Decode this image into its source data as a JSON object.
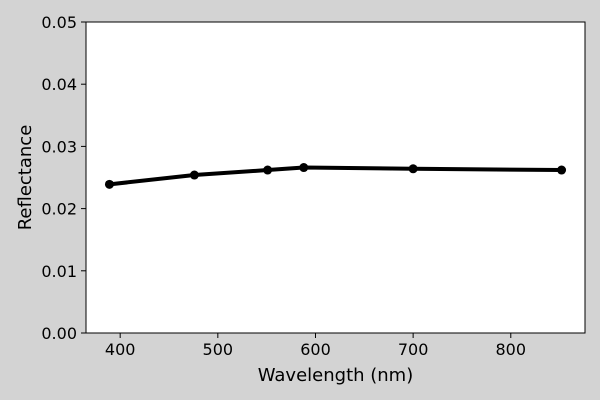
{
  "chart_data": {
    "type": "line",
    "title": "",
    "xlabel": "Wavelength (nm)",
    "ylabel": "Reflectance",
    "xlim": [
      365,
      876
    ],
    "ylim": [
      0.0,
      0.05
    ],
    "xticks": [
      400,
      500,
      600,
      700,
      800
    ],
    "xtick_labels": [
      "400",
      "500",
      "600",
      "700",
      "800"
    ],
    "yticks": [
      0.0,
      0.01,
      0.02,
      0.03,
      0.04,
      0.05
    ],
    "ytick_labels": [
      "0.00",
      "0.01",
      "0.02",
      "0.03",
      "0.04",
      "0.05"
    ],
    "grid": false,
    "series": [
      {
        "color": "#000000",
        "marker": "circle",
        "x": [
          389,
          476,
          551,
          588,
          700,
          852
        ],
        "y": [
          0.0239,
          0.0254,
          0.0262,
          0.0266,
          0.0264,
          0.0262
        ]
      }
    ]
  }
}
